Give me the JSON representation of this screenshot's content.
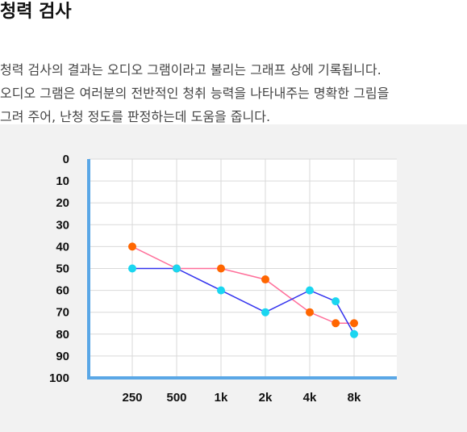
{
  "header": {
    "title": "청력 검사",
    "description_lines": [
      "청력 검사의 결과는 오디오 그램이라고 불리는 그래프 상에 기록됩니다.",
      "오디오 그램은 여러분의 전반적인 청취 능력을 나타내주는 명확한 그림을",
      "그려 주어, 난청 정도를 판정하는데 도움을 줍니다."
    ]
  },
  "colors": {
    "section_bg": "#f2f2f2",
    "plot_bg": "#ffffff",
    "grid": "#d9d9d9",
    "axis": "#5aa7e6"
  },
  "chart_data": {
    "type": "line",
    "x_tick_labels": [
      "250",
      "500",
      "1k",
      "2k",
      "4k",
      "8k"
    ],
    "y_tick_labels": [
      "0",
      "10",
      "20",
      "30",
      "40",
      "50",
      "60",
      "70",
      "80",
      "90",
      "100"
    ],
    "ylim": [
      0,
      100
    ],
    "y_inverted": true,
    "grid": true,
    "series": [
      {
        "color": "#ff6f9a",
        "marker_color": "#ff6600",
        "points": [
          [
            250,
            40
          ],
          [
            500,
            50
          ],
          [
            1000,
            50
          ],
          [
            2000,
            55
          ],
          [
            4000,
            70
          ],
          [
            6000,
            75
          ],
          [
            8000,
            75
          ]
        ]
      },
      {
        "color": "#3333ee",
        "marker_color": "#1ad6f0",
        "points": [
          [
            250,
            50
          ],
          [
            500,
            50
          ],
          [
            1000,
            60
          ],
          [
            2000,
            70
          ],
          [
            4000,
            60
          ],
          [
            6000,
            65
          ],
          [
            8000,
            80
          ]
        ]
      }
    ]
  }
}
